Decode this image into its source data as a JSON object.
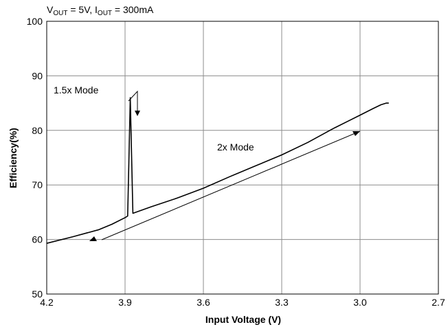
{
  "chart_data": {
    "type": "line",
    "title_parts": {
      "v": "V",
      "v_sub": "OUT",
      "v_rest": " = 5V, I",
      "i_sub": "OUT",
      "i_rest": " = 300mA"
    },
    "xlabel": "Input Voltage (V)",
    "ylabel": "Efficiency(%)",
    "xlim": [
      4.2,
      2.7
    ],
    "x_reversed": true,
    "ylim": [
      50,
      100
    ],
    "x_ticks": [
      "4.2",
      "3.9",
      "3.6",
      "3.3",
      "3.0",
      "2.7"
    ],
    "y_ticks": [
      "100",
      "90",
      "80",
      "70",
      "60",
      "50"
    ],
    "grid": true,
    "series": [
      {
        "x": [
          4.2,
          4.1,
          4.0,
          3.95,
          3.9,
          3.89,
          3.88,
          3.87,
          3.8,
          3.7,
          3.6,
          3.5,
          3.4,
          3.3,
          3.2,
          3.1,
          3.0,
          2.95,
          2.92,
          2.9,
          2.89
        ],
        "y": [
          59.3,
          60.5,
          61.8,
          62.8,
          64.0,
          64.3,
          86.0,
          64.8,
          66.0,
          67.6,
          69.4,
          71.5,
          73.5,
          75.5,
          77.8,
          80.4,
          82.8,
          84.0,
          84.7,
          85.0,
          85.0
        ]
      }
    ],
    "annotations": [
      {
        "text": "1.5x Mode"
      },
      {
        "text": "2x Mode"
      }
    ]
  }
}
